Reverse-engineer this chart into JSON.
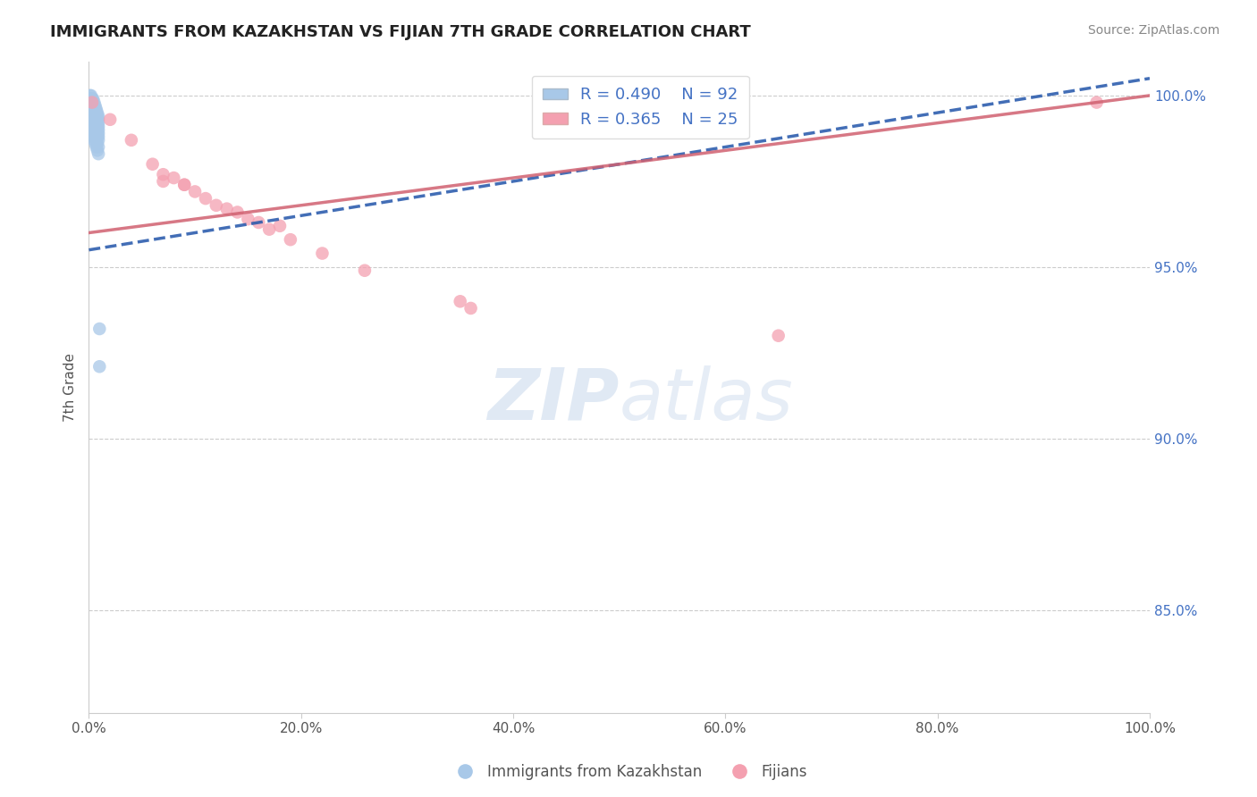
{
  "title": "IMMIGRANTS FROM KAZAKHSTAN VS FIJIAN 7TH GRADE CORRELATION CHART",
  "source": "Source: ZipAtlas.com",
  "ylabel": "7th Grade",
  "blue_label": "Immigrants from Kazakhstan",
  "pink_label": "Fijians",
  "blue_R": 0.49,
  "blue_N": 92,
  "pink_R": 0.365,
  "pink_N": 25,
  "blue_color": "#a8c8e8",
  "pink_color": "#f4a0b0",
  "blue_line_color": "#2255aa",
  "pink_line_color": "#d06070",
  "watermark_zip": "ZIP",
  "watermark_atlas": "atlas",
  "xlim": [
    0.0,
    1.0
  ],
  "ylim": [
    0.82,
    1.01
  ],
  "xticks": [
    0.0,
    0.2,
    0.4,
    0.6,
    0.8,
    1.0
  ],
  "xtick_labels": [
    "0.0%",
    "20.0%",
    "40.0%",
    "60.0%",
    "80.0%",
    "100.0%"
  ],
  "ytick_labels": [
    "100.0%",
    "95.0%",
    "90.0%",
    "85.0%"
  ],
  "ytick_values": [
    1.0,
    0.95,
    0.9,
    0.85
  ],
  "blue_x": [
    0.001,
    0.001,
    0.001,
    0.001,
    0.001,
    0.001,
    0.001,
    0.001,
    0.001,
    0.001,
    0.002,
    0.002,
    0.002,
    0.002,
    0.002,
    0.002,
    0.002,
    0.002,
    0.002,
    0.002,
    0.003,
    0.003,
    0.003,
    0.003,
    0.003,
    0.003,
    0.003,
    0.003,
    0.003,
    0.003,
    0.004,
    0.004,
    0.004,
    0.004,
    0.004,
    0.004,
    0.004,
    0.004,
    0.004,
    0.004,
    0.005,
    0.005,
    0.005,
    0.005,
    0.005,
    0.005,
    0.005,
    0.005,
    0.005,
    0.005,
    0.006,
    0.006,
    0.006,
    0.006,
    0.006,
    0.006,
    0.006,
    0.006,
    0.006,
    0.006,
    0.007,
    0.007,
    0.007,
    0.007,
    0.007,
    0.007,
    0.007,
    0.007,
    0.007,
    0.007,
    0.008,
    0.008,
    0.008,
    0.008,
    0.008,
    0.008,
    0.008,
    0.008,
    0.008,
    0.008,
    0.009,
    0.009,
    0.009,
    0.009,
    0.009,
    0.009,
    0.009,
    0.009,
    0.009,
    0.009,
    0.01,
    0.01
  ],
  "blue_y": [
    1.0,
    0.999,
    0.998,
    0.997,
    0.996,
    0.995,
    0.994,
    0.993,
    0.992,
    0.991,
    1.0,
    0.999,
    0.998,
    0.997,
    0.996,
    0.995,
    0.994,
    0.993,
    0.992,
    0.99,
    0.999,
    0.998,
    0.997,
    0.996,
    0.995,
    0.994,
    0.993,
    0.992,
    0.991,
    0.989,
    0.999,
    0.998,
    0.997,
    0.996,
    0.995,
    0.994,
    0.993,
    0.992,
    0.99,
    0.988,
    0.998,
    0.997,
    0.996,
    0.995,
    0.994,
    0.993,
    0.992,
    0.991,
    0.989,
    0.987,
    0.997,
    0.996,
    0.995,
    0.994,
    0.993,
    0.992,
    0.991,
    0.99,
    0.988,
    0.986,
    0.996,
    0.995,
    0.994,
    0.993,
    0.992,
    0.991,
    0.99,
    0.989,
    0.987,
    0.985,
    0.995,
    0.994,
    0.993,
    0.992,
    0.991,
    0.99,
    0.989,
    0.988,
    0.986,
    0.984,
    0.994,
    0.993,
    0.992,
    0.991,
    0.99,
    0.989,
    0.988,
    0.987,
    0.985,
    0.983,
    0.932,
    0.921
  ],
  "pink_x": [
    0.003,
    0.02,
    0.04,
    0.06,
    0.07,
    0.09,
    0.1,
    0.11,
    0.13,
    0.15,
    0.17,
    0.19,
    0.22,
    0.26,
    0.07,
    0.12,
    0.18,
    0.35,
    0.36,
    0.65,
    0.08,
    0.14,
    0.16,
    0.09,
    0.95
  ],
  "pink_y": [
    0.998,
    0.993,
    0.987,
    0.98,
    0.977,
    0.974,
    0.972,
    0.97,
    0.967,
    0.964,
    0.961,
    0.958,
    0.954,
    0.949,
    0.975,
    0.968,
    0.962,
    0.94,
    0.938,
    0.93,
    0.976,
    0.966,
    0.963,
    0.974,
    0.998
  ],
  "blue_trend_x": [
    0.0,
    1.0
  ],
  "blue_trend_y": [
    0.955,
    1.005
  ],
  "pink_trend_x": [
    0.0,
    1.0
  ],
  "pink_trend_y": [
    0.96,
    1.0
  ]
}
